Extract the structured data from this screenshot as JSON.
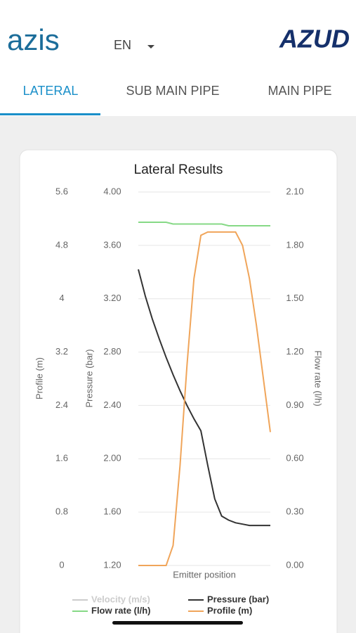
{
  "header": {
    "logo": "azis",
    "language": "EN",
    "brand": "AZUD"
  },
  "tabs": [
    "LATERAL",
    "SUB MAIN PIPE",
    "MAIN PIPE"
  ],
  "chart_data": {
    "type": "line",
    "title": "Lateral Results",
    "xlabel": "Emitter position",
    "ylabel": "Pressure (bar)",
    "y2label": "Flow rate (l/h)",
    "y3label": "Profile (m)",
    "ylim": [
      1.2,
      4.0
    ],
    "yticks": [
      {
        "value": 1.2,
        "label": "1.20"
      },
      {
        "value": 1.6,
        "label": "1.60"
      },
      {
        "value": 2.0,
        "label": "2.00"
      },
      {
        "value": 2.4,
        "label": "2.40"
      },
      {
        "value": 2.8,
        "label": "2.80"
      },
      {
        "value": 3.2,
        "label": "3.20"
      },
      {
        "value": 3.6,
        "label": "3.60"
      },
      {
        "value": 4.0,
        "label": "4.00"
      }
    ],
    "y2lim": [
      0,
      2.1
    ],
    "y2ticks": [
      {
        "value": 0,
        "label": "0.00"
      },
      {
        "value": 0.3,
        "label": "0.30"
      },
      {
        "value": 0.6,
        "label": "0.60"
      },
      {
        "value": 0.9,
        "label": "0.90"
      },
      {
        "value": 1.2,
        "label": "1.20"
      },
      {
        "value": 1.5,
        "label": "1.50"
      },
      {
        "value": 1.8,
        "label": "1.80"
      },
      {
        "value": 2.1,
        "label": "2.10"
      }
    ],
    "y3lim": [
      0,
      5.6
    ],
    "y3ticks": [
      0,
      0.8,
      1.6,
      2.4,
      3.2,
      4,
      4.8,
      5.6
    ],
    "grid": true,
    "series": [
      {
        "name": "Velocity (m/s)",
        "color": "#cccccc",
        "hidden": true
      },
      {
        "name": "Pressure (bar)",
        "color": "#333333",
        "axis": "y",
        "values": [
          3.42,
          3.22,
          3.05,
          2.9,
          2.76,
          2.63,
          2.51,
          2.4,
          2.3,
          2.21,
          1.95,
          1.7,
          1.57,
          1.54,
          1.52,
          1.51,
          1.5,
          1.5,
          1.5,
          1.5
        ]
      },
      {
        "name": "Flow rate (l/h)",
        "color": "#86d986",
        "axis": "y2",
        "values": [
          1.93,
          1.93,
          1.93,
          1.93,
          1.93,
          1.92,
          1.92,
          1.92,
          1.92,
          1.92,
          1.92,
          1.92,
          1.92,
          1.91,
          1.91,
          1.91,
          1.91,
          1.91,
          1.91,
          1.91
        ]
      },
      {
        "name": "Profile (m)",
        "color": "#f0a55a",
        "axis": "y3",
        "values": [
          0,
          0,
          0,
          0,
          0,
          0.3,
          1.5,
          3.0,
          4.3,
          4.95,
          5.0,
          5.0,
          5.0,
          5.0,
          5.0,
          4.8,
          4.3,
          3.6,
          2.8,
          2.0
        ]
      }
    ]
  }
}
